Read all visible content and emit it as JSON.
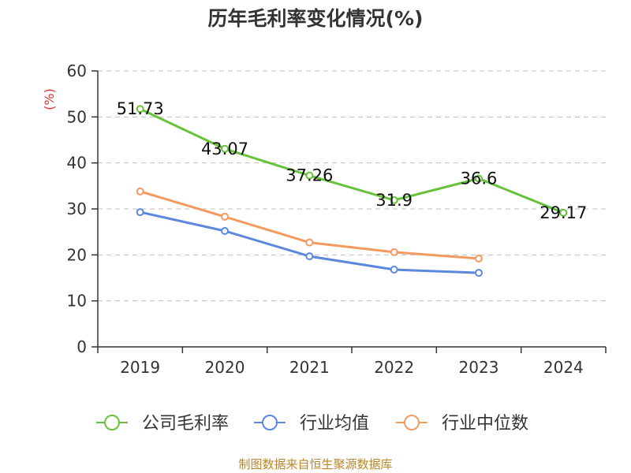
{
  "chart_data": {
    "type": "line",
    "title": "历年毛利率变化情况(%)",
    "ylabel": "(%)",
    "xlabel": "",
    "categories": [
      "2019",
      "2020",
      "2021",
      "2022",
      "2023",
      "2024"
    ],
    "ylim": [
      0,
      60
    ],
    "yticks": [
      0,
      10,
      20,
      30,
      40,
      50,
      60
    ],
    "grid": true,
    "legend_position": "bottom",
    "series": [
      {
        "name": "公司毛利率",
        "color": "#67c23a",
        "values": [
          51.73,
          43.07,
          37.26,
          31.9,
          36.6,
          29.17
        ],
        "labels": [
          "51.73",
          "43.07",
          "37.26",
          "31.9",
          "36.6",
          "29.17"
        ]
      },
      {
        "name": "行业均值",
        "color": "#5b87dc",
        "values": [
          29.3,
          25.2,
          19.7,
          16.8,
          16.1,
          null
        ]
      },
      {
        "name": "行业中位数",
        "color": "#f59a5f",
        "values": [
          33.8,
          28.3,
          22.7,
          20.6,
          19.2,
          null
        ]
      }
    ]
  },
  "footer": "制图数据来自恒生聚源数据库"
}
